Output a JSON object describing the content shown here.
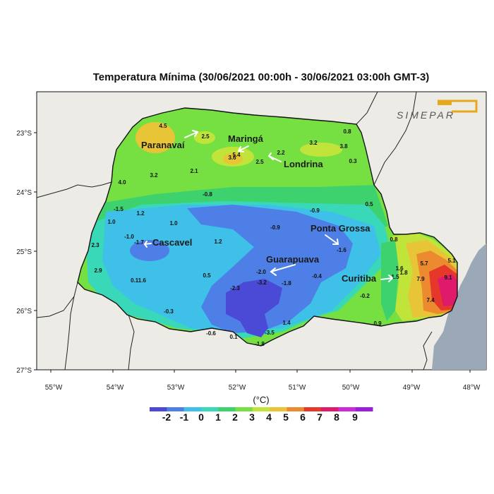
{
  "title": "Temperatura Mínima (30/06/2021 00:00h - 30/06/2021 03:00h GMT-3)",
  "logo": {
    "text": "SIMEPAR",
    "color": "#e8a81c"
  },
  "colors": {
    "ocean": "#9aa8b8",
    "land_outside": "#ecebe6",
    "border": "#111111"
  },
  "axes": {
    "x_ticks": [
      "55°W",
      "54°W",
      "53°W",
      "52°W",
      "51°W",
      "50°W",
      "49°W",
      "48°W"
    ],
    "y_ticks": [
      "23°S",
      "24°S",
      "25°S",
      "26°S",
      "27°S"
    ]
  },
  "cities": [
    {
      "name": "Paranavaí"
    },
    {
      "name": "Maringá"
    },
    {
      "name": "Londrina"
    },
    {
      "name": "Cascavel"
    },
    {
      "name": "Ponta Grossa"
    },
    {
      "name": "Guarapuava"
    },
    {
      "name": "Curitiba"
    }
  ],
  "station_values": [
    "4.5",
    "2.5",
    "5.4",
    "3.6",
    "2.2",
    "3.2",
    "3.8",
    "0.8",
    "0.3",
    "2.5",
    "2.1",
    "3.2",
    "4.0",
    "-0.8",
    "-1.5",
    "1.2",
    "1.0",
    "1.0",
    "-0.9",
    "0.5",
    "-1.0",
    "-1.7",
    "2.3",
    "1.2",
    "-0.9",
    "-1.6",
    "0.8",
    "2.9",
    "0.5",
    "-2.0",
    "-0.4",
    "0.11.6",
    "-2.3",
    "-3.2",
    "-1.8",
    "1.5",
    "1.6",
    "1.8",
    "5.7",
    "5.1",
    "7.9",
    "9.1",
    "-0.3",
    "-0.2",
    "7.4",
    "1.4",
    "0.9",
    "-0.6",
    "0.1",
    "-3.5",
    "-1.8"
  ],
  "legend": {
    "unit": "(°C)",
    "labels": [
      "-2",
      "-1",
      "0",
      "1",
      "2",
      "3",
      "4",
      "5",
      "6",
      "7",
      "8",
      "9"
    ],
    "colors": [
      "#4a4ad6",
      "#4e7fe6",
      "#3fc0e8",
      "#38d8b8",
      "#3ed26e",
      "#76e043",
      "#c0e43a",
      "#e8c437",
      "#ec8a30",
      "#e6382a",
      "#e01a6a",
      "#cc2ad8",
      "#9a1ee0"
    ]
  }
}
